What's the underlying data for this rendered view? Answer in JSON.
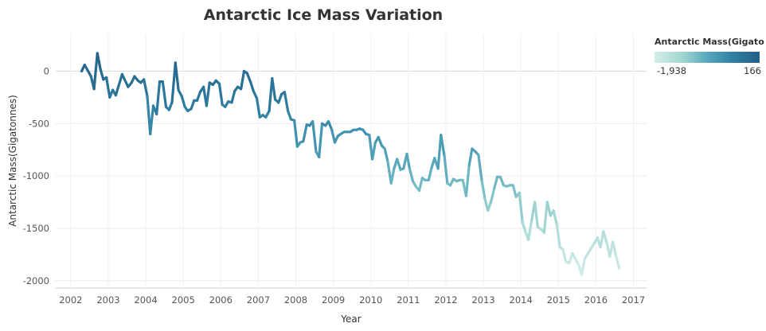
{
  "chart_data": {
    "type": "line",
    "title": "Antarctic Ice Mass Variation",
    "xlabel": "Year",
    "ylabel": "Antarctic Mass(Gigatonnes)",
    "x_ticks": [
      "2002",
      "2003",
      "2004",
      "2005",
      "2006",
      "2007",
      "2008",
      "2009",
      "2010",
      "2011",
      "2012",
      "2013",
      "2014",
      "2015",
      "2016",
      "2017"
    ],
    "y_ticks": [
      "0",
      "-500",
      "-1000",
      "-1500",
      "-2000"
    ],
    "xlim": [
      2001.6,
      2017.35
    ],
    "ylim": [
      -2070,
      360
    ],
    "grid": true,
    "legend": {
      "title": "Antarctic Mass(Gigato..",
      "min_label": "-1,938",
      "max_label": "166",
      "min": -1938,
      "max": 166,
      "colors": [
        "#d3ede9",
        "#a6d8d3",
        "#58a9bd",
        "#2f7fa3",
        "#245f86"
      ],
      "placement": "top-right"
    },
    "series": [
      {
        "x": [
          2002.29,
          2002.37,
          2002.54,
          2002.62,
          2002.71,
          2002.79,
          2002.87,
          2002.95,
          2003.04,
          2003.12,
          2003.2,
          2003.37,
          2003.53,
          2003.62,
          2003.7,
          2003.79,
          2003.87,
          2003.95,
          2004.04,
          2004.12,
          2004.2,
          2004.29,
          2004.37,
          2004.45,
          2004.54,
          2004.62,
          2004.7,
          2004.79,
          2004.87,
          2004.96,
          2005.04,
          2005.12,
          2005.21,
          2005.29,
          2005.37,
          2005.45,
          2005.54,
          2005.62,
          2005.7,
          2005.79,
          2005.87,
          2005.96,
          2006.04,
          2006.12,
          2006.2,
          2006.29,
          2006.37,
          2006.45,
          2006.54,
          2006.62,
          2006.7,
          2006.79,
          2006.87,
          2006.96,
          2007.04,
          2007.12,
          2007.2,
          2007.29,
          2007.37,
          2007.45,
          2007.54,
          2007.62,
          2007.7,
          2007.79,
          2007.87,
          2007.96,
          2008.04,
          2008.12,
          2008.2,
          2008.29,
          2008.37,
          2008.45,
          2008.54,
          2008.62,
          2008.7,
          2008.79,
          2008.87,
          2008.96,
          2009.04,
          2009.12,
          2009.2,
          2009.29,
          2009.37,
          2009.45,
          2009.54,
          2009.62,
          2009.7,
          2009.79,
          2009.87,
          2009.96,
          2010.04,
          2010.12,
          2010.2,
          2010.29,
          2010.37,
          2010.45,
          2010.54,
          2010.62,
          2010.7,
          2010.79,
          2010.87,
          2010.96,
          2011.04,
          2011.12,
          2011.2,
          2011.29,
          2011.37,
          2011.45,
          2011.54,
          2011.62,
          2011.7,
          2011.79,
          2011.87,
          2011.96,
          2012.04,
          2012.12,
          2012.2,
          2012.29,
          2012.37,
          2012.45,
          2012.54,
          2012.62,
          2012.7,
          2012.79,
          2012.87,
          2012.96,
          2013.04,
          2013.12,
          2013.2,
          2013.29,
          2013.37,
          2013.45,
          2013.54,
          2013.62,
          2013.7,
          2013.79,
          2013.87,
          2013.96,
          2014.04,
          2014.12,
          2014.2,
          2014.29,
          2014.37,
          2014.45,
          2014.54,
          2014.62,
          2014.7,
          2014.79,
          2014.87,
          2014.96,
          2015.04,
          2015.12,
          2015.2,
          2015.29,
          2015.37,
          2015.45,
          2015.54,
          2015.62,
          2015.7,
          2015.79,
          2015.87,
          2015.96,
          2016.04,
          2016.12,
          2016.2,
          2016.29,
          2016.37,
          2016.45,
          2016.54,
          2016.62
        ],
        "y": [
          0,
          60,
          -50,
          -170,
          170,
          20,
          -80,
          -60,
          -250,
          -180,
          -230,
          -30,
          -150,
          -110,
          -50,
          -90,
          -110,
          -80,
          -240,
          -600,
          -330,
          -410,
          -100,
          -100,
          -340,
          -370,
          -300,
          80,
          -180,
          -240,
          -340,
          -380,
          -360,
          -280,
          -280,
          -200,
          -150,
          -330,
          -110,
          -130,
          -90,
          -120,
          -320,
          -340,
          -290,
          -300,
          -190,
          -150,
          -170,
          0,
          -20,
          -100,
          -190,
          -260,
          -440,
          -420,
          -440,
          -380,
          -70,
          -270,
          -300,
          -220,
          -200,
          -380,
          -460,
          -470,
          -720,
          -680,
          -670,
          -510,
          -520,
          -480,
          -770,
          -820,
          -500,
          -520,
          -480,
          -560,
          -680,
          -620,
          -600,
          -580,
          -580,
          -580,
          -560,
          -560,
          -550,
          -560,
          -600,
          -610,
          -840,
          -680,
          -630,
          -710,
          -740,
          -860,
          -1070,
          -930,
          -840,
          -940,
          -930,
          -790,
          -940,
          -1050,
          -1100,
          -1140,
          -1020,
          -1040,
          -1040,
          -920,
          -830,
          -930,
          -610,
          -810,
          -1070,
          -1090,
          -1030,
          -1050,
          -1040,
          -1040,
          -1190,
          -900,
          -740,
          -770,
          -800,
          -1050,
          -1220,
          -1330,
          -1250,
          -1120,
          -1010,
          -1010,
          -1090,
          -1100,
          -1090,
          -1090,
          -1200,
          -1160,
          -1440,
          -1530,
          -1610,
          -1420,
          -1250,
          -1490,
          -1510,
          -1540,
          -1250,
          -1380,
          -1330,
          -1470,
          -1680,
          -1700,
          -1820,
          -1830,
          -1740,
          -1790,
          -1850,
          -1940,
          -1790,
          -1740,
          -1690,
          -1640,
          -1590,
          -1680,
          -1530,
          -1640,
          -1770,
          -1630,
          -1770,
          -1880
        ]
      }
    ]
  }
}
